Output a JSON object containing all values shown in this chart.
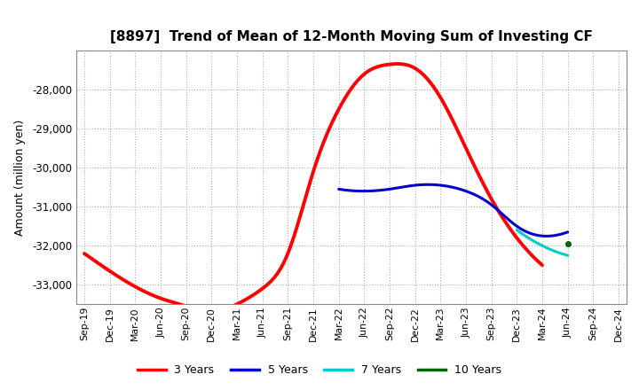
{
  "title": "[8897]  Trend of Mean of 12-Month Moving Sum of Investing CF",
  "ylabel": "Amount (million yen)",
  "background_color": "#ffffff",
  "grid_color": "#b0b0b0",
  "ylim": [
    -33500,
    -27000
  ],
  "yticks": [
    -33000,
    -32000,
    -31000,
    -30000,
    -29000,
    -28000
  ],
  "x_labels": [
    "Sep-19",
    "Dec-19",
    "Mar-20",
    "Jun-20",
    "Sep-20",
    "Dec-20",
    "Mar-21",
    "Jun-21",
    "Sep-21",
    "Dec-21",
    "Mar-22",
    "Jun-22",
    "Sep-22",
    "Dec-22",
    "Mar-23",
    "Jun-23",
    "Sep-23",
    "Dec-23",
    "Mar-24",
    "Jun-24",
    "Sep-24",
    "Dec-24"
  ],
  "series": {
    "3yr": {
      "color": "#ff0000",
      "label": "3 Years",
      "values": [
        -32200,
        -32650,
        -33050,
        -33350,
        -33550,
        -33700,
        -33500,
        -33100,
        -32200,
        -30100,
        -28500,
        -27600,
        -27350,
        -27450,
        -28200,
        -29500,
        -30800,
        -31800,
        -32500,
        null,
        null,
        null
      ]
    },
    "5yr": {
      "color": "#0000cc",
      "label": "5 Years",
      "values": [
        null,
        null,
        null,
        null,
        null,
        null,
        null,
        null,
        null,
        null,
        -30550,
        -30600,
        -30550,
        -30450,
        -30450,
        -30600,
        -30950,
        -31500,
        -31750,
        -31650,
        null,
        null
      ]
    },
    "7yr": {
      "color": "#00cccc",
      "label": "7 Years",
      "values": [
        null,
        null,
        null,
        null,
        null,
        null,
        null,
        null,
        null,
        null,
        null,
        null,
        null,
        null,
        null,
        null,
        null,
        -31600,
        -32000,
        -32250,
        null,
        null
      ]
    },
    "10yr": {
      "color": "#006600",
      "label": "10 Years",
      "values": [
        null,
        null,
        null,
        null,
        null,
        null,
        null,
        null,
        null,
        null,
        null,
        null,
        null,
        null,
        null,
        null,
        null,
        null,
        null,
        -31950,
        null,
        null
      ]
    }
  },
  "legend_labels": [
    "3 Years",
    "5 Years",
    "7 Years",
    "10 Years"
  ],
  "legend_colors": [
    "#ff0000",
    "#0000cc",
    "#00cccc",
    "#006600"
  ],
  "line_widths": {
    "3yr": 2.8,
    "5yr": 2.2,
    "7yr": 2.2,
    "10yr": 2.2
  }
}
